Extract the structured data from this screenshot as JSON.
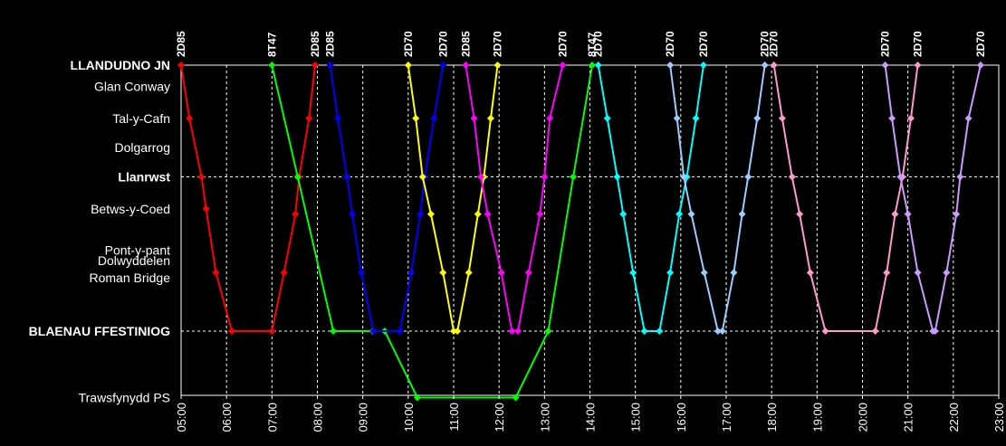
{
  "chart_data": {
    "type": "line",
    "title": "",
    "xlabel": "",
    "ylabel": "",
    "x_unit": "time of day",
    "xlim": [
      "05:00",
      "23:00"
    ],
    "grid": true,
    "background": "#000000",
    "x_ticks": [
      "05:00",
      "06:00",
      "07:00",
      "08:00",
      "09:00",
      "10:00",
      "11:00",
      "12:00",
      "13:00",
      "14:00",
      "15:00",
      "16:00",
      "17:00",
      "18:00",
      "19:00",
      "20:00",
      "21:00",
      "22:00",
      "23:00"
    ],
    "stations": [
      {
        "name": "LLANDUDNO JN",
        "major": true,
        "pos": 0
      },
      {
        "name": "Glan Conway",
        "major": false,
        "pos": 0.08
      },
      {
        "name": "Tal-y-Cafn",
        "major": false,
        "pos": 0.2
      },
      {
        "name": "Dolgarrog",
        "major": false,
        "pos": 0.31
      },
      {
        "name": "Llanrwst",
        "major": true,
        "pos": 0.42
      },
      {
        "name": "Betws-y-Coed",
        "major": false,
        "pos": 0.54
      },
      {
        "name": "Pont-y-pant",
        "major": false,
        "pos": 0.695
      },
      {
        "name": "Dolwyddelen",
        "major": false,
        "pos": 0.735
      },
      {
        "name": "Roman Bridge",
        "major": false,
        "pos": 0.8
      },
      {
        "name": "BLAENAU FFESTINIOG",
        "major": true,
        "pos": 1.0
      },
      {
        "name": "Trawsfynydd PS",
        "major": false,
        "pos": 1.25
      }
    ],
    "train_labels": [
      {
        "label": "2D85",
        "time": "05:00"
      },
      {
        "label": "8T47",
        "time": "07:00"
      },
      {
        "label": "2D85",
        "time": "07:57"
      },
      {
        "label": "2D85",
        "time": "08:17"
      },
      {
        "label": "2D70",
        "time": "10:00"
      },
      {
        "label": "2D70",
        "time": "10:46"
      },
      {
        "label": "2D85",
        "time": "11:16"
      },
      {
        "label": "2D70",
        "time": "11:58"
      },
      {
        "label": "2D70",
        "time": "13:24"
      },
      {
        "label": "8T47",
        "time": "14:03"
      },
      {
        "label": "2D70",
        "time": "14:11"
      },
      {
        "label": "2D70",
        "time": "15:46"
      },
      {
        "label": "2D70",
        "time": "16:30"
      },
      {
        "label": "2D70",
        "time": "17:51"
      },
      {
        "label": "2D70",
        "time": "18:03"
      },
      {
        "label": "2D70",
        "time": "20:30"
      },
      {
        "label": "2D70",
        "time": "21:13"
      },
      {
        "label": "2D70",
        "time": "22:36"
      }
    ],
    "series": [
      {
        "color": "#ff0000",
        "points": [
          [
            "05:00",
            0
          ],
          [
            "05:11",
            0.2
          ],
          [
            "05:27",
            0.42
          ],
          [
            "05:33",
            0.54
          ],
          [
            "05:46",
            0.78
          ],
          [
            "06:07",
            1.0
          ],
          [
            "07:00",
            1.0
          ],
          [
            "07:16",
            0.78
          ],
          [
            "07:31",
            0.56
          ],
          [
            "07:36",
            0.42
          ],
          [
            "07:49",
            0.2
          ],
          [
            "07:57",
            0
          ]
        ]
      },
      {
        "color": "#00ff00",
        "points": [
          [
            "07:00",
            0
          ],
          [
            "07:34",
            0.42
          ],
          [
            "08:21",
            1.0
          ],
          [
            "09:13",
            1.0
          ],
          [
            "09:29",
            1.0
          ],
          [
            "10:12",
            1.25
          ],
          [
            "12:22",
            1.25
          ],
          [
            "13:05",
            1.0
          ],
          [
            "13:38",
            0.42
          ],
          [
            "14:03",
            0
          ]
        ]
      },
      {
        "color": "#0000ff",
        "points": [
          [
            "08:17",
            0
          ],
          [
            "08:27",
            0.2
          ],
          [
            "08:39",
            0.42
          ],
          [
            "08:46",
            0.56
          ],
          [
            "08:58",
            0.78
          ],
          [
            "09:14",
            1.0
          ],
          [
            "09:49",
            1.0
          ],
          [
            "10:04",
            0.78
          ],
          [
            "10:16",
            0.56
          ],
          [
            "10:22",
            0.42
          ],
          [
            "10:34",
            0.2
          ],
          [
            "10:46",
            0
          ]
        ]
      },
      {
        "color": "#ffff00",
        "points": [
          [
            "10:00",
            0
          ],
          [
            "10:10",
            0.2
          ],
          [
            "10:19",
            0.42
          ],
          [
            "10:30",
            0.56
          ],
          [
            "10:46",
            0.78
          ],
          [
            "11:00",
            1.0
          ],
          [
            "11:05",
            1.0
          ],
          [
            "11:20",
            0.78
          ],
          [
            "11:32",
            0.56
          ],
          [
            "11:40",
            0.42
          ],
          [
            "11:49",
            0.2
          ],
          [
            "11:58",
            0
          ]
        ]
      },
      {
        "color": "#ff00ff",
        "points": [
          [
            "11:16",
            0
          ],
          [
            "11:27",
            0.2
          ],
          [
            "11:36",
            0.42
          ],
          [
            "11:45",
            0.56
          ],
          [
            "12:03",
            0.78
          ],
          [
            "12:17",
            1.0
          ],
          [
            "12:25",
            1.0
          ],
          [
            "12:39",
            0.78
          ],
          [
            "12:54",
            0.56
          ],
          [
            "13:00",
            0.42
          ],
          [
            "13:07",
            0.2
          ],
          [
            "13:24",
            0
          ]
        ]
      },
      {
        "color": "#00ffff",
        "points": [
          [
            "14:11",
            0
          ],
          [
            "14:23",
            0.2
          ],
          [
            "14:36",
            0.42
          ],
          [
            "14:44",
            0.56
          ],
          [
            "14:57",
            0.78
          ],
          [
            "15:12",
            1.0
          ],
          [
            "15:32",
            1.0
          ],
          [
            "15:46",
            0.78
          ],
          [
            "15:58",
            0.56
          ],
          [
            "16:08",
            0.42
          ],
          [
            "16:20",
            0.2
          ],
          [
            "16:30",
            0
          ]
        ]
      },
      {
        "color": "#99ccff",
        "points": [
          [
            "15:46",
            0
          ],
          [
            "15:55",
            0.2
          ],
          [
            "16:04",
            0.42
          ],
          [
            "16:14",
            0.56
          ],
          [
            "16:31",
            0.78
          ],
          [
            "16:49",
            1.0
          ],
          [
            "16:55",
            1.0
          ],
          [
            "17:10",
            0.78
          ],
          [
            "17:21",
            0.56
          ],
          [
            "17:29",
            0.42
          ],
          [
            "17:41",
            0.2
          ],
          [
            "17:51",
            0
          ]
        ]
      },
      {
        "color": "#ff99cc",
        "points": [
          [
            "18:03",
            0
          ],
          [
            "18:14",
            0.2
          ],
          [
            "18:27",
            0.42
          ],
          [
            "18:37",
            0.56
          ],
          [
            "18:51",
            0.78
          ],
          [
            "19:11",
            1.0
          ],
          [
            "20:17",
            1.0
          ],
          [
            "20:32",
            0.78
          ],
          [
            "20:43",
            0.56
          ],
          [
            "20:53",
            0.42
          ],
          [
            "21:04",
            0.2
          ],
          [
            "21:13",
            0
          ]
        ]
      },
      {
        "color": "#cc99ff",
        "points": [
          [
            "20:30",
            0
          ],
          [
            "20:39",
            0.2
          ],
          [
            "20:50",
            0.42
          ],
          [
            "21:00",
            0.56
          ],
          [
            "21:13",
            0.78
          ],
          [
            "21:33",
            1.0
          ],
          [
            "21:36",
            1.0
          ],
          [
            "21:51",
            0.78
          ],
          [
            "22:04",
            0.56
          ],
          [
            "22:09",
            0.42
          ],
          [
            "22:20",
            0.2
          ],
          [
            "22:36",
            0
          ]
        ]
      }
    ]
  }
}
